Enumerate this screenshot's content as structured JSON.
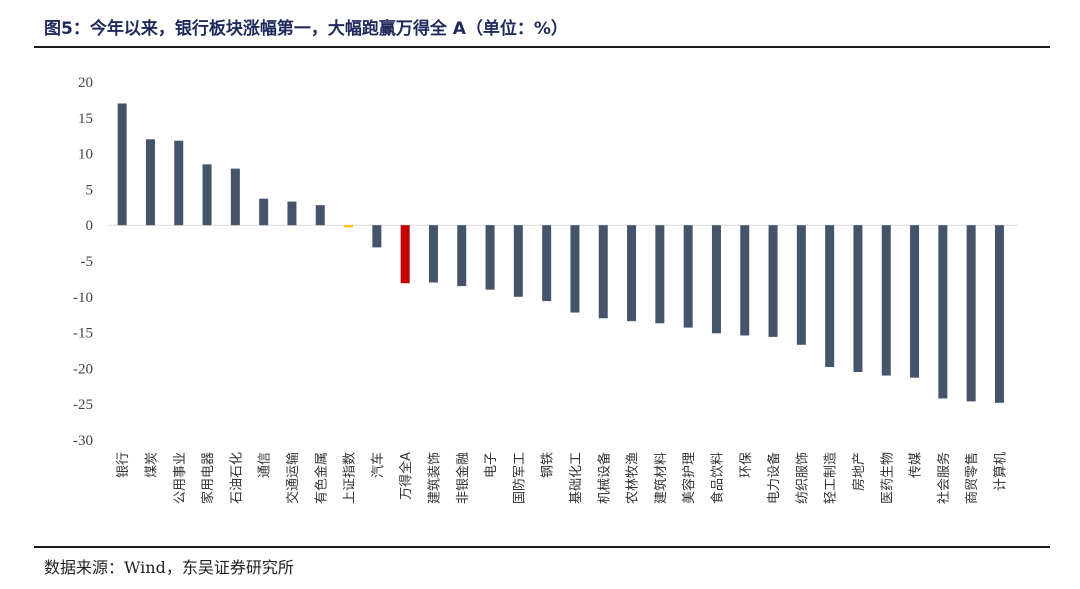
{
  "header": {
    "title": "图5：今年以来，银行板块涨幅第一，大幅跑赢万得全 A（单位：%）"
  },
  "footer": {
    "source": "数据来源：Wind，东吴证券研究所"
  },
  "colors": {
    "default_bar": "#44546a",
    "highlight_benchmark": "#ffc000",
    "highlight_wind_a": "#c00000"
  },
  "chart_data": {
    "type": "bar",
    "title": "图5：今年以来，银行板块涨幅第一，大幅跑赢万得全 A（单位：%）",
    "xlabel": "",
    "ylabel": "",
    "ylim": [
      -30,
      20
    ],
    "yticks": [
      20,
      15,
      10,
      5,
      0,
      -5,
      -10,
      -15,
      -20,
      -25,
      -30
    ],
    "grid": false,
    "legend": "none",
    "categories": [
      "银行",
      "煤炭",
      "公用事业",
      "家用电器",
      "石油石化",
      "通信",
      "交通运输",
      "有色金属",
      "上证指数",
      "汽车",
      "万得全A",
      "建筑装饰",
      "非银金融",
      "电子",
      "国防军工",
      "钢铁",
      "基础化工",
      "机械设备",
      "农林牧渔",
      "建筑材料",
      "美容护理",
      "食品饮料",
      "环保",
      "电力设备",
      "纺织服饰",
      "轻工制造",
      "房地产",
      "医药生物",
      "传媒",
      "社会服务",
      "商贸零售",
      "计算机"
    ],
    "values": [
      17.0,
      12.0,
      11.8,
      8.5,
      7.9,
      3.7,
      3.3,
      2.8,
      -0.3,
      -3.1,
      -8.1,
      -8.0,
      -8.5,
      -9.0,
      -10.0,
      -10.6,
      -12.2,
      -13.0,
      -13.4,
      -13.7,
      -14.3,
      -15.1,
      -15.4,
      -15.6,
      -16.7,
      -19.8,
      -20.5,
      -21.0,
      -21.3,
      -24.2,
      -24.6,
      -24.8
    ],
    "bar_colors": [
      "#44546a",
      "#44546a",
      "#44546a",
      "#44546a",
      "#44546a",
      "#44546a",
      "#44546a",
      "#44546a",
      "#ffc000",
      "#44546a",
      "#c00000",
      "#44546a",
      "#44546a",
      "#44546a",
      "#44546a",
      "#44546a",
      "#44546a",
      "#44546a",
      "#44546a",
      "#44546a",
      "#44546a",
      "#44546a",
      "#44546a",
      "#44546a",
      "#44546a",
      "#44546a",
      "#44546a",
      "#44546a",
      "#44546a",
      "#44546a",
      "#44546a",
      "#44546a"
    ]
  }
}
